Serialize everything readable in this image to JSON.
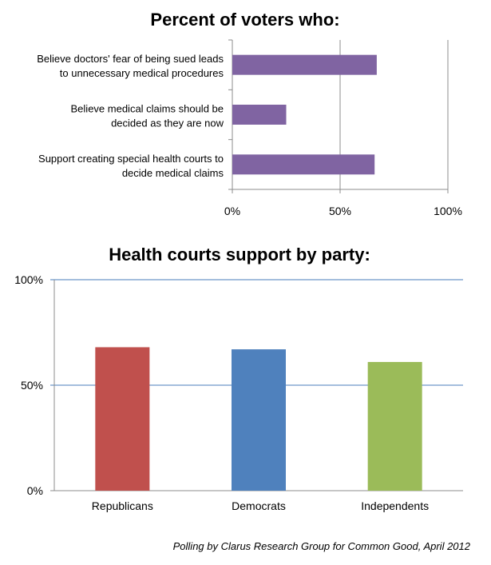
{
  "chart_data": [
    {
      "type": "bar",
      "orientation": "horizontal",
      "title": "Percent of voters who:",
      "categories": [
        [
          "Believe doctors' fear of being sued leads",
          "to unnecessary medical procedures"
        ],
        [
          "Believe medical claims should be",
          "decided as they are now"
        ],
        [
          "Support creating special health courts to",
          "decide medical claims"
        ]
      ],
      "values": [
        67,
        25,
        66
      ],
      "xlim": [
        0,
        100
      ],
      "xticks": [
        "0%",
        "50%",
        "100%"
      ],
      "bar_color": "#8064a2",
      "grid": true
    },
    {
      "type": "bar",
      "orientation": "vertical",
      "title": "Health courts support by party:",
      "categories": [
        "Republicans",
        "Democrats",
        "Independents"
      ],
      "values": [
        68,
        67,
        61
      ],
      "colors": [
        "#c0504d",
        "#4f81bd",
        "#9bbb59"
      ],
      "ylim": [
        0,
        100
      ],
      "yticks": [
        "0%",
        "50%",
        "100%"
      ],
      "grid": true
    }
  ],
  "source": "Polling by Clarus Research Group for Common Good, April 2012"
}
